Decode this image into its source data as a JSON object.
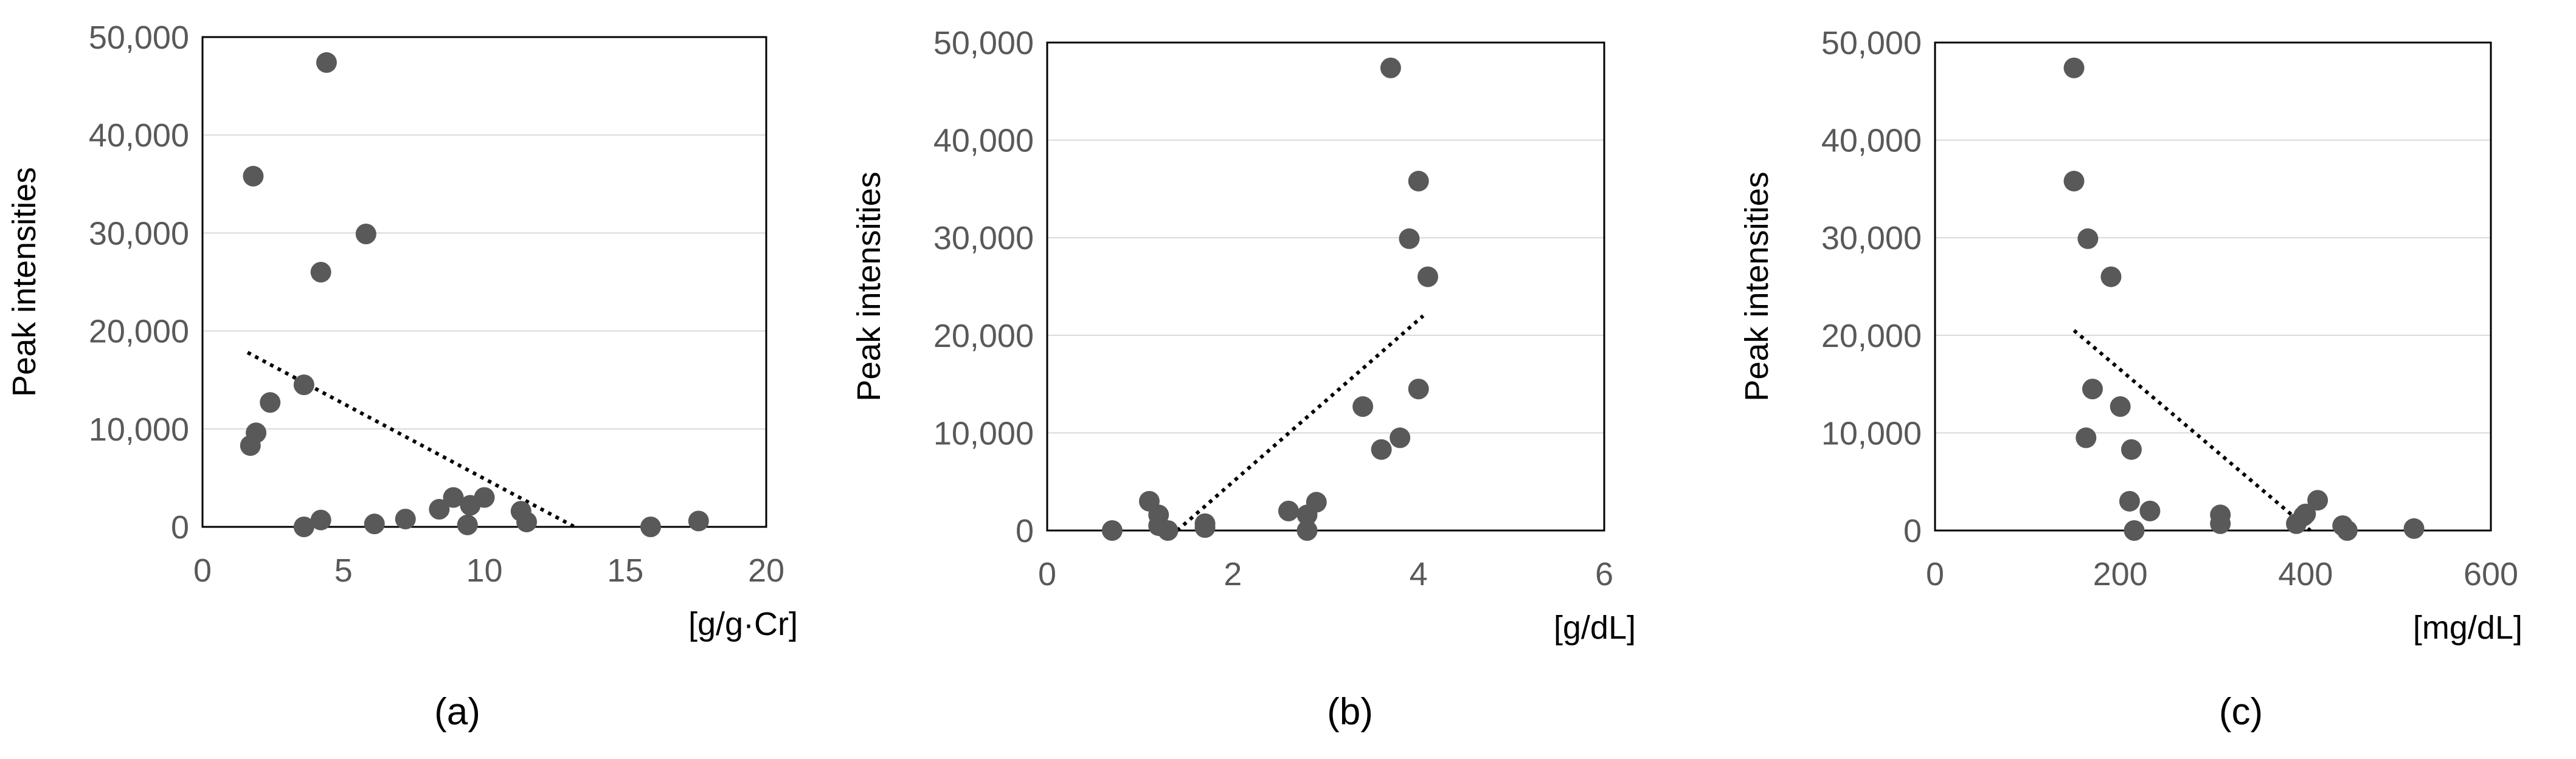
{
  "colors": {
    "point": "#595959",
    "trend": "#000000",
    "grid": "#d9d9d9",
    "frame": "#000000",
    "tick_text": "#595959"
  },
  "chart_data": [
    {
      "type": "scatter",
      "panel_label": "(a)",
      "ylabel": "Peak intensities",
      "xlabel": "[g/g·Cr]",
      "xlim": [
        0,
        20
      ],
      "ylim": [
        0,
        50000
      ],
      "x_ticks": [
        "0",
        "5",
        "10",
        "15",
        "20"
      ],
      "y_ticks": [
        "0",
        "10,000",
        "20,000",
        "30,000",
        "40,000",
        "50,000"
      ],
      "grid": true,
      "trendline": {
        "style": "dotted",
        "x": [
          1.6,
          13.2
        ],
        "y": [
          17800,
          0
        ]
      },
      "points": [
        {
          "x": 1.7,
          "y": 8300
        },
        {
          "x": 1.8,
          "y": 35800
        },
        {
          "x": 1.9,
          "y": 9600
        },
        {
          "x": 2.4,
          "y": 12700
        },
        {
          "x": 3.6,
          "y": 14500
        },
        {
          "x": 3.6,
          "y": 0
        },
        {
          "x": 4.2,
          "y": 26000
        },
        {
          "x": 4.2,
          "y": 700
        },
        {
          "x": 4.4,
          "y": 47400
        },
        {
          "x": 5.8,
          "y": 29900
        },
        {
          "x": 6.1,
          "y": 300
        },
        {
          "x": 7.2,
          "y": 800
        },
        {
          "x": 8.4,
          "y": 1800
        },
        {
          "x": 8.9,
          "y": 3000
        },
        {
          "x": 9.5,
          "y": 2200
        },
        {
          "x": 9.4,
          "y": 200
        },
        {
          "x": 10.0,
          "y": 3000
        },
        {
          "x": 11.3,
          "y": 1600
        },
        {
          "x": 11.5,
          "y": 500
        },
        {
          "x": 15.9,
          "y": 0
        },
        {
          "x": 17.6,
          "y": 600
        }
      ]
    },
    {
      "type": "scatter",
      "panel_label": "(b)",
      "ylabel": "Peak intensities",
      "xlabel": "[g/dL]",
      "xlim": [
        0,
        6
      ],
      "ylim": [
        0,
        50000
      ],
      "x_ticks": [
        "0",
        "2",
        "4",
        "6"
      ],
      "y_ticks": [
        "0",
        "10,000",
        "20,000",
        "30,000",
        "40,000",
        "50,000"
      ],
      "grid": true,
      "trendline": {
        "style": "dotted",
        "x": [
          1.4,
          4.05
        ],
        "y": [
          0,
          22000
        ]
      },
      "points": [
        {
          "x": 0.7,
          "y": 0
        },
        {
          "x": 1.1,
          "y": 3000
        },
        {
          "x": 1.2,
          "y": 1600
        },
        {
          "x": 1.2,
          "y": 500
        },
        {
          "x": 1.3,
          "y": 0
        },
        {
          "x": 1.7,
          "y": 700
        },
        {
          "x": 1.7,
          "y": 300
        },
        {
          "x": 2.6,
          "y": 2000
        },
        {
          "x": 2.8,
          "y": 1600
        },
        {
          "x": 2.8,
          "y": 0
        },
        {
          "x": 2.9,
          "y": 2900
        },
        {
          "x": 3.4,
          "y": 12700
        },
        {
          "x": 3.6,
          "y": 8300
        },
        {
          "x": 3.8,
          "y": 9500
        },
        {
          "x": 3.7,
          "y": 47400
        },
        {
          "x": 3.9,
          "y": 29900
        },
        {
          "x": 4.0,
          "y": 35800
        },
        {
          "x": 4.0,
          "y": 14500
        },
        {
          "x": 4.1,
          "y": 26000
        }
      ]
    },
    {
      "type": "scatter",
      "panel_label": "(c)",
      "ylabel": "Peak intensities",
      "xlabel": "[mg/dL]",
      "xlim": [
        0,
        600
      ],
      "ylim": [
        0,
        50000
      ],
      "x_ticks": [
        "0",
        "200",
        "400",
        "600"
      ],
      "y_ticks": [
        "0",
        "10,000",
        "20,000",
        "30,000",
        "40,000",
        "50,000"
      ],
      "grid": true,
      "trendline": {
        "style": "dotted",
        "x": [
          150,
          405
        ],
        "y": [
          20500,
          0
        ]
      },
      "points": [
        {
          "x": 150,
          "y": 47400
        },
        {
          "x": 150,
          "y": 35800
        },
        {
          "x": 165,
          "y": 29900
        },
        {
          "x": 190,
          "y": 26000
        },
        {
          "x": 170,
          "y": 14500
        },
        {
          "x": 163,
          "y": 9500
        },
        {
          "x": 200,
          "y": 12700
        },
        {
          "x": 212,
          "y": 8300
        },
        {
          "x": 210,
          "y": 3000
        },
        {
          "x": 215,
          "y": 0
        },
        {
          "x": 232,
          "y": 2000
        },
        {
          "x": 308,
          "y": 1600
        },
        {
          "x": 308,
          "y": 700
        },
        {
          "x": 390,
          "y": 700
        },
        {
          "x": 400,
          "y": 1700
        },
        {
          "x": 398,
          "y": 1500
        },
        {
          "x": 413,
          "y": 3100
        },
        {
          "x": 440,
          "y": 500
        },
        {
          "x": 445,
          "y": 0
        },
        {
          "x": 517,
          "y": 200
        }
      ]
    }
  ]
}
